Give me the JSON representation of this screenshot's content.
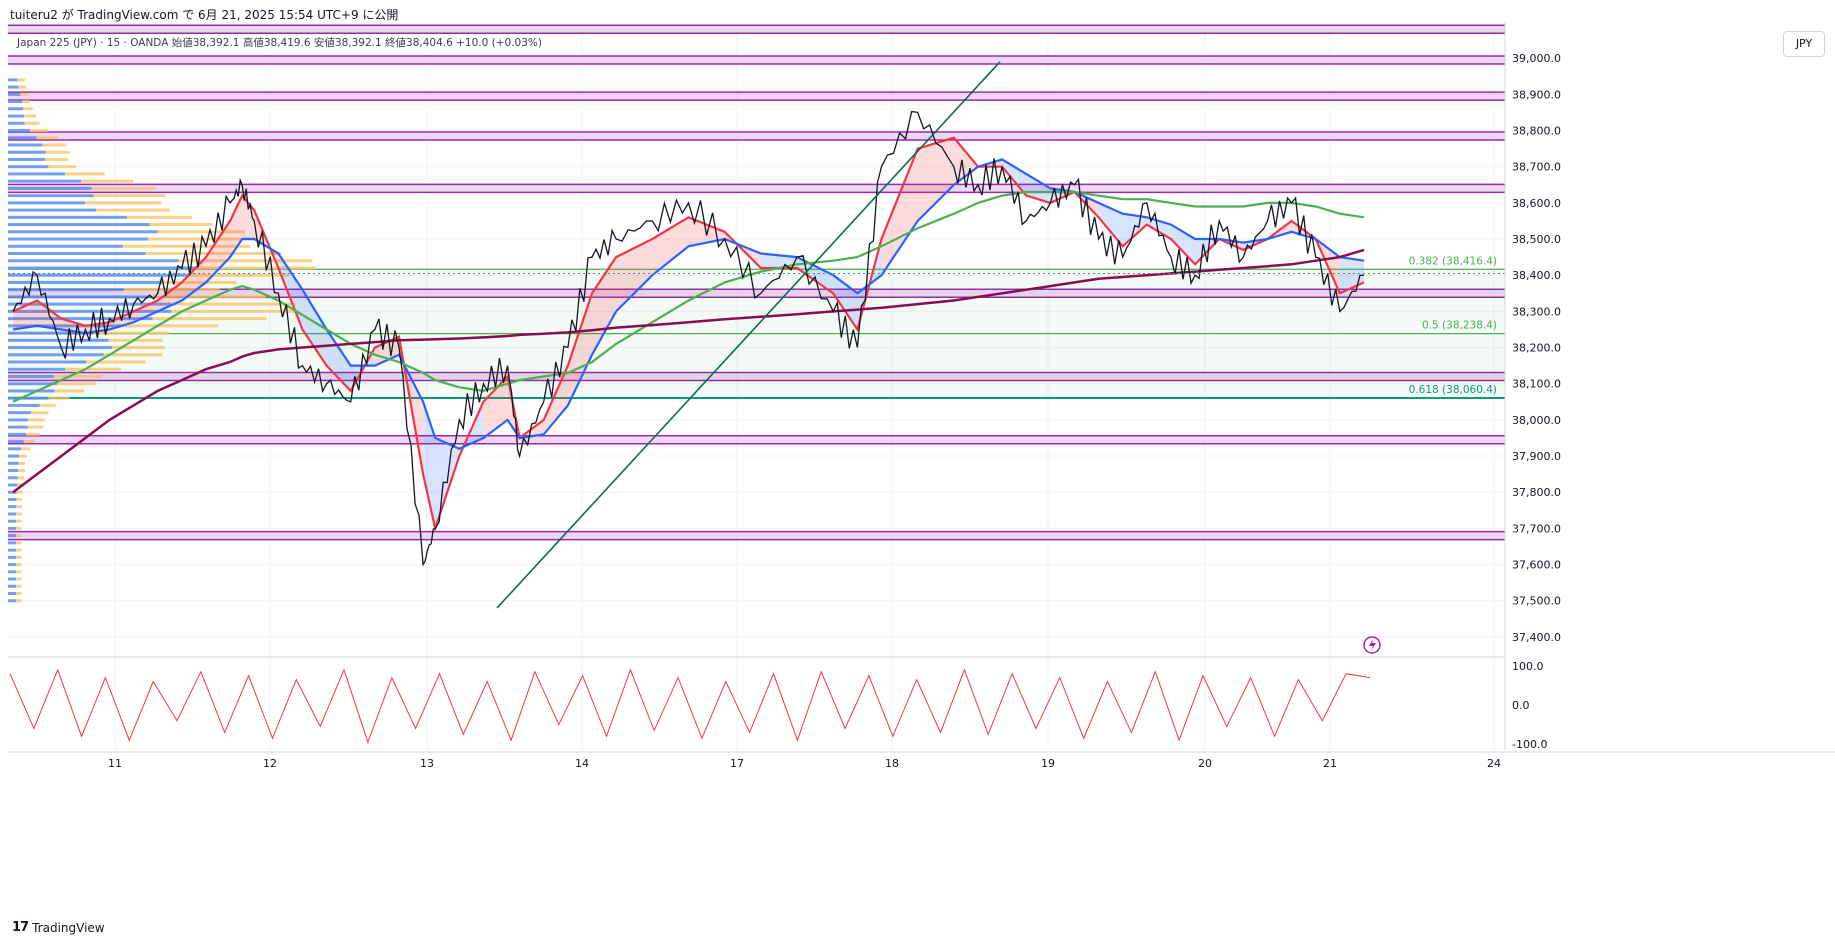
{
  "header": {
    "title": "tuiteru2 が TradingView.com で 6月 21, 2025 15:54 UTC+9 に公開",
    "ohlc": "Japan 225 (JPY) · 15 · OANDA  始値38,392.1  高値38,419.6  安値38,392.1  終値38,404.6  +10.0 (+0.03%)"
  },
  "currency_button": "JPY",
  "footer": {
    "logo_mark": "17",
    "logo_text": "TradingView"
  },
  "colors": {
    "candle": "#131722",
    "ma_red": "#f23645",
    "ma_blue": "#2962ff",
    "ma_green": "#4caf50",
    "ma_maroon": "#880e4f",
    "purple_line": "#9c27b0",
    "purple_band": "#e1bee7",
    "vp_blue": "#5b8def",
    "vp_orange": "#f7c35f",
    "fib_green": "#4caf50",
    "fib_teal": "#089981",
    "trend_line": "#0b6b4f",
    "osc": "#f23645"
  },
  "chart_data": [
    {
      "type": "line",
      "title": "",
      "price_axis": {
        "ticks": [
          "39,000.0",
          "38,900.0",
          "38,800.0",
          "38,700.0",
          "38,600.0",
          "38,500.0",
          "38,400.0",
          "38,300.0",
          "38,200.0",
          "38,100.0",
          "38,000.0",
          "37,900.0",
          "37,800.0",
          "37,700.0",
          "37,600.0",
          "37,500.0",
          "37,400.0"
        ],
        "ylim": [
          37350,
          39100
        ],
        "last_price": "38,404.6"
      },
      "time_axis": [
        "11",
        "12",
        "13",
        "14",
        "17",
        "18",
        "19",
        "20",
        "21",
        "24"
      ],
      "fib_levels": [
        {
          "label": "0.382 (38,416.4)",
          "value": 38416.4
        },
        {
          "label": "0.5 (38,238.4)",
          "value": 38238.4
        },
        {
          "label": "0.618 (38,060.4)",
          "value": 38060.4
        }
      ],
      "horizontal_levels": [
        39080,
        38995,
        38895,
        38785,
        38640,
        38350,
        38120,
        37945,
        37680
      ],
      "price_series": {
        "x": [
          10.0,
          10.2,
          10.4,
          10.6,
          10.8,
          11.0,
          11.2,
          11.4,
          11.6,
          11.8,
          11.9,
          12.0,
          12.2,
          12.4,
          12.6,
          12.8,
          13.0,
          13.2,
          13.4,
          13.5,
          13.7,
          13.9,
          14.1,
          14.2,
          14.4,
          14.6,
          14.8,
          15.0,
          15.3,
          15.6,
          15.9,
          16.2,
          16.5,
          16.8,
          17.0,
          17.2,
          17.5,
          17.8,
          18.0,
          18.2,
          18.4,
          18.6,
          18.8,
          19.0,
          19.2,
          19.4,
          19.6,
          19.8,
          20.0,
          20.2,
          20.4,
          20.6,
          20.8,
          21.0,
          21.2
        ],
        "close": [
          38300,
          38400,
          38200,
          38250,
          38280,
          38320,
          38350,
          38420,
          38480,
          38600,
          38650,
          38550,
          38350,
          38150,
          38100,
          38050,
          38250,
          38200,
          37600,
          37700,
          38000,
          38100,
          38150,
          37900,
          38050,
          38200,
          38450,
          38500,
          38550,
          38600,
          38500,
          38350,
          38450,
          38300,
          38200,
          38700,
          38850,
          38700,
          38650,
          38700,
          38550,
          38600,
          38650,
          38500,
          38450,
          38600,
          38450,
          38400,
          38550,
          38450,
          38550,
          38600,
          38450,
          38300,
          38400
        ]
      },
      "series": [
        {
          "name": "",
          "role": "ma_red",
          "values": [
            38300,
            38330,
            38280,
            38260,
            38270,
            38300,
            38330,
            38380,
            38450,
            38550,
            38620,
            38580,
            38420,
            38250,
            38150,
            38080,
            38200,
            38230,
            37850,
            37700,
            37900,
            38050,
            38120,
            37950,
            38000,
            38150,
            38350,
            38450,
            38500,
            38560,
            38520,
            38420,
            38420,
            38350,
            38250,
            38500,
            38750,
            38780,
            38700,
            38700,
            38620,
            38600,
            38630,
            38560,
            38480,
            38540,
            38500,
            38430,
            38500,
            38470,
            38500,
            38550,
            38500,
            38350,
            38380
          ]
        },
        {
          "name": "",
          "role": "ma_blue",
          "values": [
            38250,
            38260,
            38250,
            38240,
            38250,
            38270,
            38300,
            38330,
            38380,
            38450,
            38500,
            38500,
            38460,
            38360,
            38250,
            38150,
            38150,
            38180,
            38050,
            37950,
            37920,
            37950,
            38000,
            37950,
            37960,
            38040,
            38180,
            38300,
            38400,
            38480,
            38500,
            38460,
            38450,
            38400,
            38350,
            38400,
            38550,
            38650,
            38700,
            38720,
            38680,
            38640,
            38630,
            38600,
            38570,
            38560,
            38540,
            38500,
            38500,
            38490,
            38500,
            38520,
            38500,
            38450,
            38440
          ]
        },
        {
          "name": "",
          "role": "ma_green",
          "values": [
            38050,
            38080,
            38110,
            38140,
            38180,
            38220,
            38260,
            38300,
            38330,
            38360,
            38370,
            38360,
            38330,
            38290,
            38250,
            38210,
            38180,
            38160,
            38130,
            38110,
            38090,
            38080,
            38100,
            38110,
            38120,
            38130,
            38160,
            38210,
            38270,
            38330,
            38380,
            38410,
            38430,
            38440,
            38450,
            38480,
            38530,
            38570,
            38600,
            38620,
            38630,
            38630,
            38630,
            38620,
            38610,
            38610,
            38600,
            38590,
            38590,
            38590,
            38600,
            38600,
            38590,
            38570,
            38560
          ]
        },
        {
          "name": "",
          "role": "ma_maroon",
          "values": [
            37800,
            37850,
            37900,
            37950,
            38000,
            38040,
            38080,
            38110,
            38140,
            38160,
            38175,
            38185,
            38195,
            38200,
            38205,
            38210,
            38215,
            38220,
            38222,
            38223,
            38225,
            38228,
            38232,
            38235,
            38238,
            38242,
            38248,
            38255,
            38262,
            38270,
            38278,
            38285,
            38292,
            38300,
            38305,
            38310,
            38320,
            38330,
            38340,
            38350,
            38360,
            38370,
            38380,
            38390,
            38395,
            38400,
            38405,
            38410,
            38415,
            38420,
            38425,
            38430,
            38440,
            38450,
            38470
          ]
        }
      ],
      "trendline": {
        "from": {
          "x": 13.45,
          "y": 37480
        },
        "to": {
          "x": 18.65,
          "y": 38990
        }
      },
      "oscillator": {
        "ylim": [
          -115,
          115
        ],
        "ticks": [
          "100.0",
          "0.0",
          "-100.0"
        ],
        "values": [
          80,
          -60,
          90,
          -80,
          70,
          -90,
          60,
          -40,
          85,
          -70,
          75,
          -85,
          65,
          -55,
          90,
          -95,
          70,
          -60,
          80,
          -75,
          60,
          -90,
          85,
          -50,
          75,
          -80,
          90,
          -65,
          70,
          -85,
          60,
          -70,
          80,
          -90,
          85,
          -60,
          75,
          -80,
          65,
          -70,
          90,
          -75,
          80,
          -60,
          70,
          -85,
          60,
          -70,
          85,
          -90,
          75,
          -55,
          70,
          -80,
          65,
          -40,
          80,
          70
        ]
      }
    }
  ]
}
